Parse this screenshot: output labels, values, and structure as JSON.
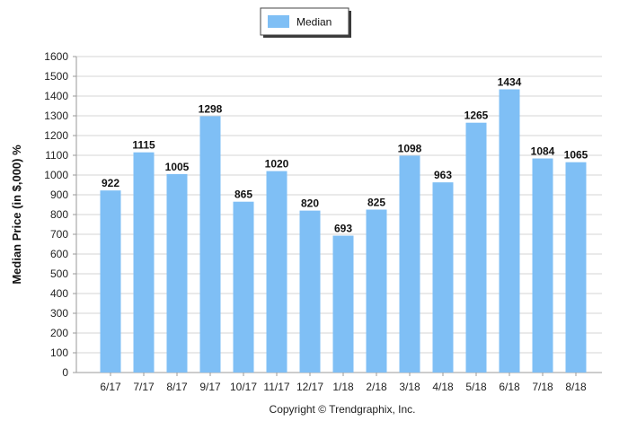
{
  "chart_data": {
    "type": "bar",
    "categories": [
      "6/17",
      "7/17",
      "8/17",
      "9/17",
      "10/17",
      "11/17",
      "12/17",
      "1/18",
      "2/18",
      "3/18",
      "4/18",
      "5/18",
      "6/18",
      "7/18",
      "8/18"
    ],
    "series": [
      {
        "name": "Median",
        "values": [
          922,
          1115,
          1005,
          1298,
          865,
          1020,
          820,
          693,
          825,
          1098,
          963,
          1265,
          1434,
          1084,
          1065
        ],
        "color": "#7fbff5"
      }
    ],
    "ylabel": "Median Price (in $,000) %",
    "xlabel": "",
    "ylim": [
      0,
      1600
    ],
    "yticks": [
      0,
      100,
      200,
      300,
      400,
      500,
      600,
      700,
      800,
      900,
      1000,
      1100,
      1200,
      1300,
      1400,
      1500,
      1600
    ],
    "grid": true,
    "legend_position": "top-center",
    "credit": "Copyright © Trendgraphix, Inc."
  }
}
